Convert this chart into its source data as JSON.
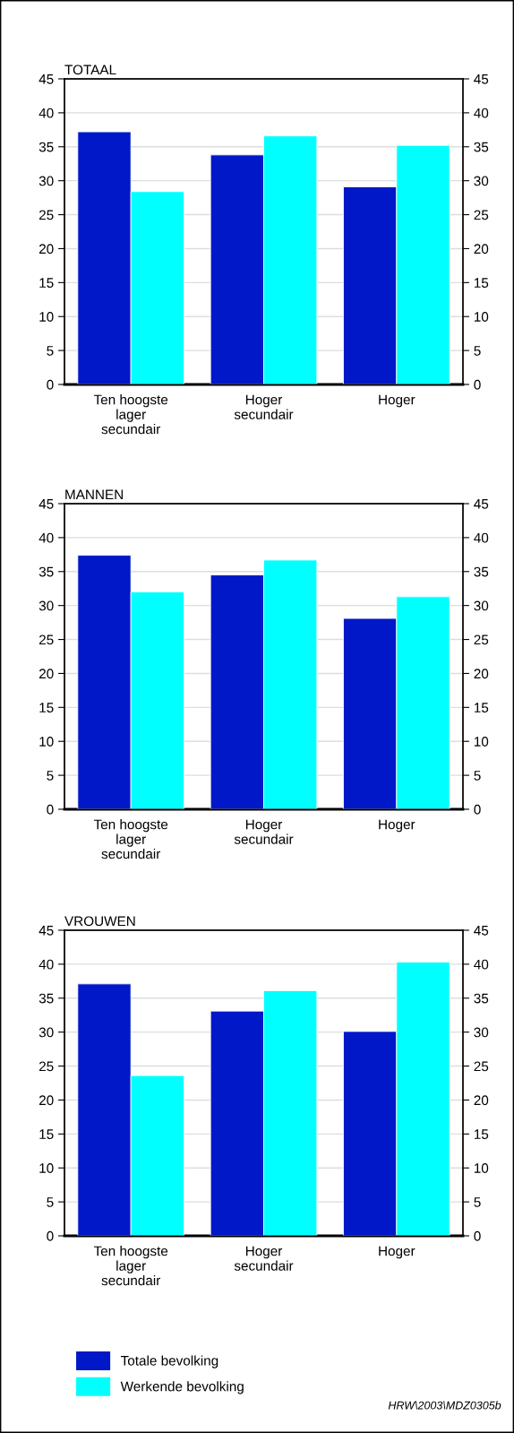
{
  "chart_data": [
    {
      "type": "bar",
      "title": "TOTAAL",
      "categories": [
        "Ten hoogste\nlager\nsecundair",
        "Hoger\nsecundair",
        "Hoger"
      ],
      "series": [
        {
          "color": "#0018c8",
          "values": [
            37.2,
            33.8,
            29.1
          ]
        },
        {
          "color": "#00ffff",
          "values": [
            28.4,
            36.6,
            35.2
          ]
        }
      ],
      "ylim": [
        0,
        45
      ],
      "yticks": [
        0,
        5,
        10,
        15,
        20,
        25,
        30,
        35,
        40,
        45
      ],
      "y2lim": [
        0,
        45
      ],
      "y2ticks": [
        0,
        5,
        10,
        15,
        20,
        25,
        30,
        35,
        40,
        45
      ],
      "grid": "y"
    },
    {
      "type": "bar",
      "title": "MANNEN",
      "categories": [
        "Ten hoogste\nlager\nsecundair",
        "Hoger\nsecundair",
        "Hoger"
      ],
      "series": [
        {
          "color": "#0018c8",
          "values": [
            37.4,
            34.5,
            28.1
          ]
        },
        {
          "color": "#00ffff",
          "values": [
            32.0,
            36.7,
            31.3
          ]
        }
      ],
      "ylim": [
        0,
        45
      ],
      "yticks": [
        0,
        5,
        10,
        15,
        20,
        25,
        30,
        35,
        40,
        45
      ],
      "y2lim": [
        0,
        45
      ],
      "y2ticks": [
        0,
        5,
        10,
        15,
        20,
        25,
        30,
        35,
        40,
        45
      ],
      "grid": "y"
    },
    {
      "type": "bar",
      "title": "VROUWEN",
      "categories": [
        "Ten hoogste\nlager\nsecundair",
        "Hoger\nsecundair",
        "Hoger"
      ],
      "series": [
        {
          "name": "Totale bevolking",
          "color": "#0018c8",
          "values": [
            37.1,
            33.1,
            30.1
          ]
        },
        {
          "name": "Werkende bevolking",
          "color": "#00ffff",
          "values": [
            23.6,
            36.1,
            40.3
          ]
        }
      ],
      "ylim": [
        0,
        45
      ],
      "yticks": [
        0,
        5,
        10,
        15,
        20,
        25,
        30,
        35,
        40,
        45
      ],
      "y2lim": [
        0,
        45
      ],
      "y2ticks": [
        0,
        5,
        10,
        15,
        20,
        25,
        30,
        35,
        40,
        45
      ],
      "grid": "y",
      "legend": "bottom",
      "annotations": [
        "HRW\\2003\\MDZ0305b"
      ]
    }
  ]
}
